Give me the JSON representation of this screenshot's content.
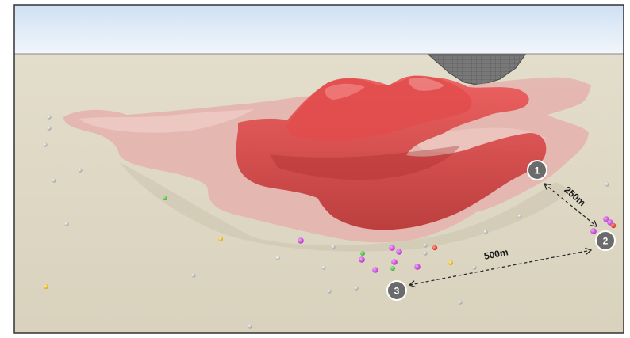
{
  "markers": [
    {
      "number": "1"
    },
    {
      "number": "2"
    },
    {
      "number": "3"
    }
  ],
  "distances": [
    {
      "label": "250m",
      "from": "1",
      "to": "2"
    },
    {
      "label": "500m",
      "from": "3",
      "to": "2"
    }
  ],
  "colors": {
    "sky_top": "#d3e3f5",
    "sky_bottom": "#eef4fb",
    "ground": "#ddd7c4",
    "outer_shell": "#e2b8b3",
    "inner_body": "#c13a3a",
    "inner_body_bright": "#e04848",
    "pit": "#6a6a6a",
    "marker": "#6b6b6b",
    "drillhole_grey": "#a7a7a7",
    "drillhole_magenta": "#c43ad4",
    "drillhole_red": "#e03a2a",
    "drillhole_green": "#3fbf3f",
    "drillhole_yellow": "#e8b81e"
  }
}
